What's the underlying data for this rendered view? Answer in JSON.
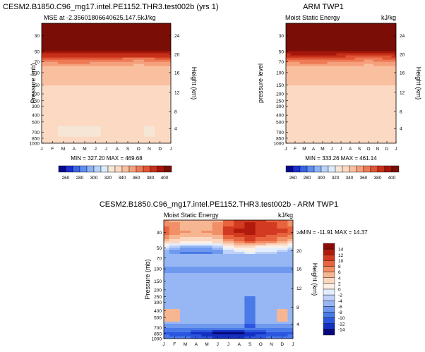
{
  "panels": {
    "model": {
      "title": "CESM2.B1850.C96_mg17.intel.PE1152.THR3.test002b (yrs 1)",
      "subtitle": "MSE at -2.35601806640625,147.5kJ/kg",
      "ylabel": "Pressure (mb)",
      "ylabel_right": "Height (km)",
      "minmax": "MIN = 327.20 MAX = 469.68"
    },
    "obs": {
      "title": "ARM TWP1",
      "subtitle_left": "Moist Static Energy",
      "subtitle_right": "kJ/kg",
      "ylabel": "pressure level",
      "ylabel_right": "Height (km)",
      "minmax": "MIN = 333.26 MAX = 461.14"
    },
    "diff": {
      "title": "CESM2.B1850.C96_mg17.intel.PE1152.THR3.test002b - ARM TWP1",
      "subtitle_left": "Moist Static Energy",
      "subtitle_right": "kJ/kg",
      "ylabel": "Pressure (mb)",
      "ylabel_right": "Height (km)",
      "minmax": "MIN = -11.91 MAX =  14.37"
    }
  },
  "chart_data": [
    {
      "type": "heatmap",
      "name": "model",
      "title": "CESM2.B1850.C96_mg17.intel.PE1152.THR3.test002b (yrs 1)",
      "subtitle": "MSE at -2.35601806640625,147.5kJ/kg",
      "xlabel": "",
      "ylabel": "Pressure (mb)",
      "x_ticks": [
        "J",
        "F",
        "M",
        "A",
        "M",
        "J",
        "J",
        "A",
        "S",
        "O",
        "N",
        "D",
        "J"
      ],
      "y_ticks": [
        "30",
        "50",
        "70",
        "100",
        "150",
        "200",
        "250",
        "300",
        "400",
        "500",
        "700",
        "850",
        "1000"
      ],
      "right_ticks": [
        "24",
        "20",
        "16",
        "12",
        "8",
        "4"
      ],
      "ylim_mb": [
        20,
        1000
      ],
      "contour_levels": [
        260,
        270,
        280,
        290,
        300,
        310,
        320,
        330,
        340,
        350,
        360,
        370,
        380,
        390,
        400
      ],
      "colorbar_labels": [
        "260",
        "280",
        "300",
        "320",
        "340",
        "360",
        "380",
        "400"
      ],
      "profile": [
        [
          20,
          460
        ],
        [
          40,
          420
        ],
        [
          55,
          390
        ],
        [
          70,
          360
        ],
        [
          90,
          345
        ],
        [
          150,
          340
        ],
        [
          250,
          339
        ],
        [
          350,
          337
        ],
        [
          500,
          336
        ],
        [
          650,
          336
        ],
        [
          700,
          334
        ],
        [
          800,
          338
        ],
        [
          1000,
          338
        ]
      ],
      "min": 327.2,
      "max": 469.68
    },
    {
      "type": "heatmap",
      "name": "obs",
      "title": "ARM TWP1",
      "subtitle": "Moist Static Energy",
      "units": "kJ/kg",
      "ylabel": "pressure level",
      "x_ticks": [
        "J",
        "F",
        "M",
        "A",
        "M",
        "J",
        "J",
        "A",
        "S",
        "O",
        "N",
        "D",
        "J"
      ],
      "y_ticks": [
        "30",
        "50",
        "70",
        "100",
        "150",
        "200",
        "250",
        "300",
        "400",
        "500",
        "700",
        "850",
        "1000"
      ],
      "right_ticks": [
        "24",
        "20",
        "16",
        "12",
        "8",
        "4"
      ],
      "ylim_mb": [
        20,
        1000
      ],
      "contour_levels": [
        260,
        270,
        280,
        290,
        300,
        310,
        320,
        330,
        340,
        350,
        360,
        370,
        380,
        390,
        400
      ],
      "colorbar_labels": [
        "260",
        "280",
        "300",
        "320",
        "340",
        "360",
        "380",
        "400"
      ],
      "profile": [
        [
          20,
          460
        ],
        [
          40,
          420
        ],
        [
          55,
          390
        ],
        [
          70,
          360
        ],
        [
          90,
          345
        ],
        [
          150,
          340
        ],
        [
          280,
          338
        ],
        [
          400,
          336
        ],
        [
          600,
          336
        ],
        [
          850,
          336
        ],
        [
          1000,
          336
        ]
      ],
      "min": 333.26,
      "max": 461.14
    },
    {
      "type": "heatmap",
      "name": "diff",
      "title": "CESM2.B1850.C96_mg17.intel.PE1152.THR3.test002b - ARM TWP1",
      "subtitle": "Moist Static Energy",
      "units": "kJ/kg",
      "ylabel": "Pressure (mb)",
      "x_ticks": [
        "J",
        "F",
        "M",
        "A",
        "M",
        "J",
        "J",
        "A",
        "S",
        "O",
        "N",
        "D",
        "J"
      ],
      "y_ticks": [
        "30",
        "50",
        "70",
        "100",
        "150",
        "200",
        "250",
        "300",
        "400",
        "500",
        "700",
        "850",
        "1000"
      ],
      "right_ticks": [
        "24",
        "20",
        "16",
        "12",
        "8",
        "4"
      ],
      "ylim_mb": [
        20,
        1000
      ],
      "contour_levels": [
        -14,
        -12,
        -10,
        -8,
        -6,
        -4,
        -2,
        0,
        2,
        4,
        6,
        8,
        10,
        12,
        14
      ],
      "colorbar_labels": [
        "14",
        "12",
        "10",
        "8",
        "6",
        "4",
        "2",
        "0",
        "-2",
        "-4",
        "-6",
        "-8",
        "-10",
        "-12",
        "-14"
      ],
      "profile": [
        [
          20,
          7
        ],
        [
          30,
          9
        ],
        [
          40,
          5
        ],
        [
          50,
          -3
        ],
        [
          60,
          -6
        ],
        [
          75,
          -4
        ],
        [
          100,
          -7
        ],
        [
          130,
          -5
        ],
        [
          200,
          -4
        ],
        [
          300,
          -5
        ],
        [
          400,
          -4
        ],
        [
          500,
          -6
        ],
        [
          600,
          -5
        ],
        [
          750,
          -9
        ],
        [
          850,
          -13
        ],
        [
          1000,
          -10
        ]
      ],
      "min": -11.91,
      "max": 14.37
    }
  ],
  "colors": {
    "abs": [
      "#08088f",
      "#1c2fd0",
      "#3b63e6",
      "#5f8df0",
      "#8db2f5",
      "#b9d2f8",
      "#dcebfb",
      "#f6e6d6",
      "#fcd9c2",
      "#f9c0a0",
      "#f5a07c",
      "#ee7a55",
      "#e05535",
      "#c73019",
      "#a4160b",
      "#7b0d07"
    ],
    "diff": [
      "#07087c",
      "#1430c2",
      "#2d56e0",
      "#4a7ae8",
      "#6f99ef",
      "#97b6f4",
      "#bfd1f8",
      "#e5eefc",
      "#fdf0e6",
      "#fbd6c0",
      "#f7b692",
      "#f18f66",
      "#e8643e",
      "#d23b21",
      "#b01b0e",
      "#8a0b06"
    ]
  }
}
